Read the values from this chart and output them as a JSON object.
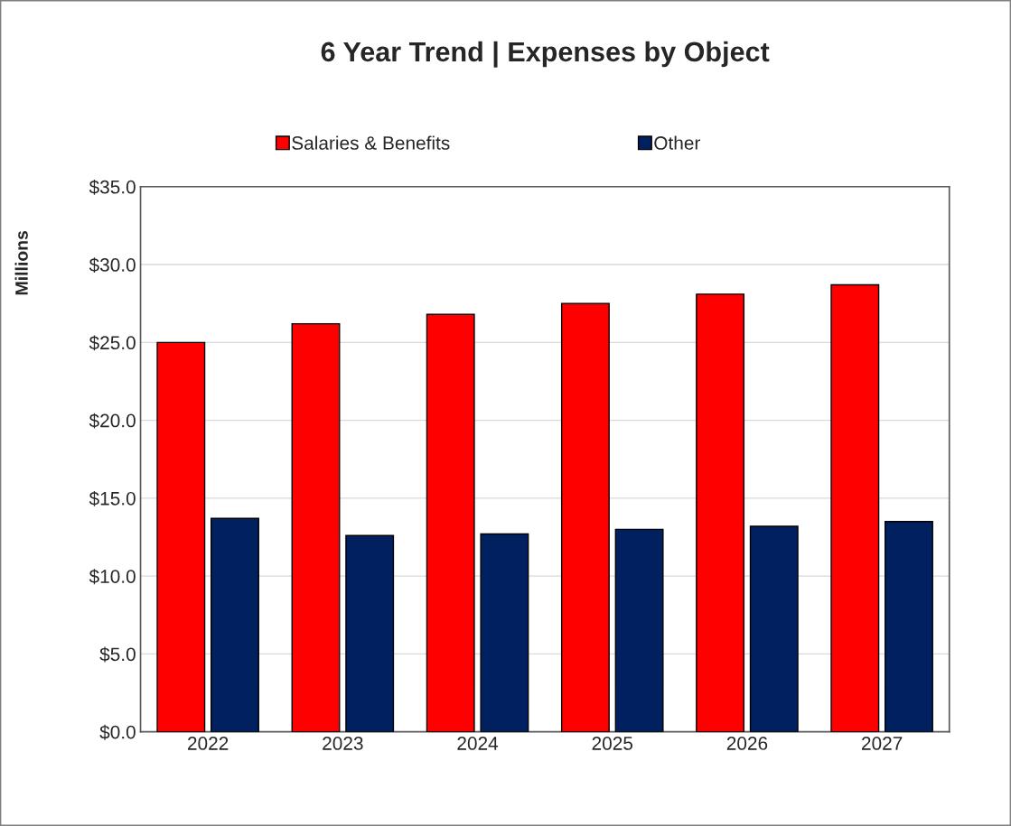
{
  "chart_data": {
    "type": "bar",
    "title": "6 Year Trend | Expenses by Object",
    "ylabel": "Millions",
    "categories": [
      "2022",
      "2023",
      "2024",
      "2025",
      "2026",
      "2027"
    ],
    "series": [
      {
        "name": "Salaries & Benefits",
        "color": "#ff0000",
        "values": [
          25.0,
          26.2,
          26.8,
          27.5,
          28.1,
          28.7
        ]
      },
      {
        "name": "Other",
        "color": "#002060",
        "values": [
          13.7,
          12.6,
          12.7,
          13.0,
          13.2,
          13.5
        ]
      }
    ],
    "ylim": [
      0,
      35
    ],
    "yticks": [
      {
        "value": 0,
        "label": "$0.0"
      },
      {
        "value": 5,
        "label": "$5.0"
      },
      {
        "value": 10,
        "label": "$10.0"
      },
      {
        "value": 15,
        "label": "$15.0"
      },
      {
        "value": 20,
        "label": "$20.0"
      },
      {
        "value": 25,
        "label": "$25.0"
      },
      {
        "value": 30,
        "label": "$30.0"
      },
      {
        "value": 35,
        "label": "$35.0"
      }
    ],
    "grid": "y",
    "legend": "top"
  }
}
